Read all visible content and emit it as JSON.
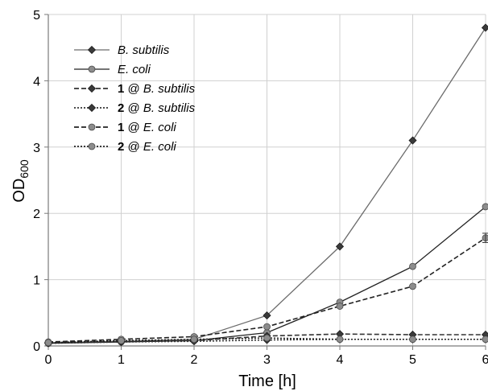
{
  "chart_data": {
    "type": "line",
    "xlabel": "Time [h]",
    "ylabel": "OD",
    "ylabel_sub": "600",
    "xlim": [
      0,
      6
    ],
    "ylim": [
      0,
      5
    ],
    "x_ticks": [
      0,
      1,
      2,
      3,
      4,
      5,
      6
    ],
    "y_ticks": [
      0,
      1,
      2,
      3,
      4,
      5
    ],
    "grid": true,
    "legend_position": "top-left",
    "x": [
      0,
      1,
      2,
      3,
      4,
      5,
      6
    ],
    "series": [
      {
        "name_prefix": "",
        "name_italic": "B. subtilis",
        "marker": "diamond",
        "line": "solid",
        "color": "#3a3a3a",
        "line_color": "#6b6b6b",
        "values": [
          0.05,
          0.07,
          0.1,
          0.46,
          1.5,
          3.1,
          4.8
        ]
      },
      {
        "name_prefix": "",
        "name_italic": "E. coli",
        "marker": "circle",
        "line": "solid",
        "color": "#8c8c8c",
        "line_color": "#222222",
        "values": [
          0.04,
          0.06,
          0.08,
          0.2,
          0.66,
          1.2,
          2.1
        ]
      },
      {
        "name_prefix": "1",
        "name_italic": "B. subtilis",
        "marker": "diamond",
        "line": "dashed",
        "color": "#3a3a3a",
        "line_color": "#333333",
        "values": [
          0.05,
          0.07,
          0.08,
          0.15,
          0.18,
          0.17,
          0.17
        ]
      },
      {
        "name_prefix": "2",
        "name_italic": "B. subtilis",
        "marker": "diamond",
        "line": "dotted",
        "color": "#3a3a3a",
        "line_color": "#333333",
        "values": [
          0.04,
          0.06,
          0.07,
          0.09,
          0.1,
          0.1,
          0.1
        ]
      },
      {
        "name_prefix": "1",
        "name_italic": "E. coli",
        "marker": "circle",
        "line": "dashed",
        "color": "#8c8c8c",
        "line_color": "#222222",
        "values": [
          0.06,
          0.1,
          0.14,
          0.29,
          0.6,
          0.9,
          1.63
        ]
      },
      {
        "name_prefix": "2",
        "name_italic": "E. coli",
        "marker": "circle",
        "line": "dotted",
        "color": "#8c8c8c",
        "line_color": "#222222",
        "values": [
          0.05,
          0.08,
          0.1,
          0.12,
          0.1,
          0.1,
          0.1
        ]
      }
    ],
    "error_bar": {
      "series_index": 4,
      "x": 6,
      "low": 1.56,
      "high": 1.7
    }
  }
}
